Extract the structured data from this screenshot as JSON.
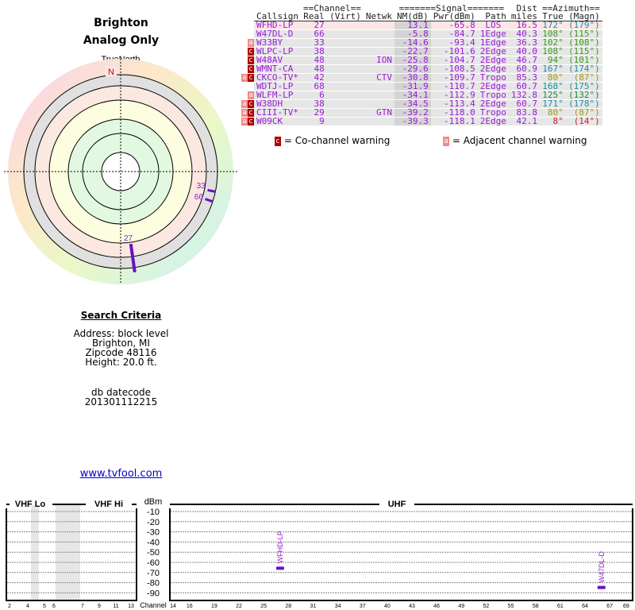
{
  "header": {
    "location": "Brighton",
    "mode": "Analog Only"
  },
  "polar": {
    "north_label": "TrueNorth",
    "n": "N"
  },
  "table": {
    "group_channel": "==Channel==",
    "group_signal": "=======Signal=======",
    "group_dist": "Dist",
    "group_azimuth": "==Azimuth==",
    "cols": [
      "Callsign",
      "Real",
      "(Virt)",
      "Netwk",
      "NM(dB)",
      "Pwr(dBm)",
      "Path",
      "miles",
      "True",
      "(Magn)"
    ],
    "rows": [
      {
        "warn": [],
        "callsign": "WFHD-LP",
        "real": "27",
        "virt": "",
        "netwk": "",
        "nm": "13.1",
        "pwr": "-65.8",
        "path": "LOS",
        "dist": "16.5",
        "true": "172°",
        "magn": "(179°)",
        "az_color": "#1a8fa0",
        "bg": "#fbe6e6",
        "az": 172
      },
      {
        "warn": [],
        "callsign": "W47DL-D",
        "real": "66",
        "virt": "",
        "netwk": "",
        "nm": "-5.8",
        "pwr": "-84.7",
        "path": "1Edge",
        "dist": "40.3",
        "true": "108°",
        "magn": "(115°)",
        "az_color": "#3a9a1a",
        "az": 108
      },
      {
        "warn": [
          "a"
        ],
        "callsign": "W33BY",
        "real": "33",
        "virt": "",
        "netwk": "",
        "nm": "-14.6",
        "pwr": "-93.4",
        "path": "1Edge",
        "dist": "36.3",
        "true": "102°",
        "magn": "(108°)",
        "az_color": "#3a9a1a",
        "az": 102
      },
      {
        "warn": [
          "c"
        ],
        "callsign": "WLPC-LP",
        "real": "38",
        "virt": "",
        "netwk": "",
        "nm": "-22.7",
        "pwr": "-101.6",
        "path": "2Edge",
        "dist": "40.0",
        "true": "108°",
        "magn": "(115°)",
        "az_color": "#3a9a1a"
      },
      {
        "warn": [
          "c"
        ],
        "callsign": "W48AV",
        "real": "48",
        "virt": "",
        "netwk": "ION",
        "nm": "-25.8",
        "pwr": "-104.7",
        "path": "2Edge",
        "dist": "46.7",
        "true": "94°",
        "magn": "(101°)",
        "az_color": "#3a9a1a"
      },
      {
        "warn": [
          "c"
        ],
        "callsign": "WMNT-CA",
        "real": "48",
        "virt": "",
        "netwk": "",
        "nm": "-29.6",
        "pwr": "-108.5",
        "path": "2Edge",
        "dist": "60.9",
        "true": "167°",
        "magn": "(174°)",
        "az_color": "#1a8fa0"
      },
      {
        "warn": [
          "a",
          "c"
        ],
        "callsign": "CKCO-TV*",
        "real": "42",
        "virt": "",
        "netwk": "CTV",
        "nm": "-30.8",
        "pwr": "-109.7",
        "path": "Tropo",
        "dist": "85.3",
        "true": "80°",
        "magn": "(87°)",
        "az_color": "#9a9a10"
      },
      {
        "warn": [],
        "callsign": "WDTJ-LP",
        "real": "68",
        "virt": "",
        "netwk": "",
        "nm": "-31.9",
        "pwr": "-110.7",
        "path": "2Edge",
        "dist": "60.7",
        "true": "168°",
        "magn": "(175°)",
        "az_color": "#1a8fa0"
      },
      {
        "warn": [
          "a"
        ],
        "callsign": "WLFM-LP",
        "real": "6",
        "virt": "",
        "netwk": "",
        "nm": "-34.1",
        "pwr": "-112.9",
        "path": "Tropo",
        "dist": "132.8",
        "true": "125°",
        "magn": "(132°)",
        "az_color": "#1a8a3a"
      },
      {
        "warn": [
          "a",
          "c"
        ],
        "callsign": "W38DH",
        "real": "38",
        "virt": "",
        "netwk": "",
        "nm": "-34.5",
        "pwr": "-113.4",
        "path": "2Edge",
        "dist": "60.7",
        "true": "171°",
        "magn": "(178°)",
        "az_color": "#1a8fa0"
      },
      {
        "warn": [
          "a",
          "c"
        ],
        "callsign": "CIII-TV*",
        "real": "29",
        "virt": "",
        "netwk": "GTN",
        "nm": "-39.2",
        "pwr": "-118.0",
        "path": "Tropo",
        "dist": "83.8",
        "true": "80°",
        "magn": "(87°)",
        "az_color": "#9a9a10"
      },
      {
        "warn": [
          "a",
          "c"
        ],
        "callsign": "W09CK",
        "real": "9",
        "virt": "",
        "netwk": "",
        "nm": "-39.3",
        "pwr": "-118.1",
        "path": "2Edge",
        "dist": "42.1",
        "true": "8°",
        "magn": "(14°)",
        "az_color": "#d02020"
      }
    ],
    "legend_co": "= Co-channel warning",
    "legend_adj": "= Adjacent channel warning",
    "co_glyph": "c",
    "adj_glyph": "a"
  },
  "criteria": {
    "title": "Search Criteria",
    "lines": [
      "Address: block level",
      "Brighton, MI",
      "Zipcode 48116",
      "Height: 20.0 ft."
    ],
    "db_label": "db datecode",
    "db_value": "201301112215",
    "link": "www.tvfool.com"
  },
  "spectrum": {
    "vhf_lo": "VHF Lo",
    "vhf_hi": "VHF Hi",
    "uhf": "UHF",
    "dbm": "dBm",
    "channel": "Channel",
    "y_ticks": [
      "-10",
      "-20",
      "-30",
      "-40",
      "-50",
      "-60",
      "-70",
      "-80",
      "-90"
    ],
    "vhf_ticks": [
      "2",
      "4",
      "5",
      "6",
      "7",
      "9",
      "11",
      "13"
    ],
    "uhf_ticks": [
      "14",
      "16",
      "19",
      "22",
      "25",
      "28",
      "31",
      "34",
      "37",
      "40",
      "43",
      "46",
      "49",
      "52",
      "55",
      "58",
      "61",
      "64",
      "67",
      "69"
    ],
    "signals": [
      {
        "callsign": "WFHD-LP",
        "channel": 27,
        "dbm": -65.8
      },
      {
        "callsign": "W47DL-D",
        "channel": 66,
        "dbm": -84.7
      }
    ]
  }
}
